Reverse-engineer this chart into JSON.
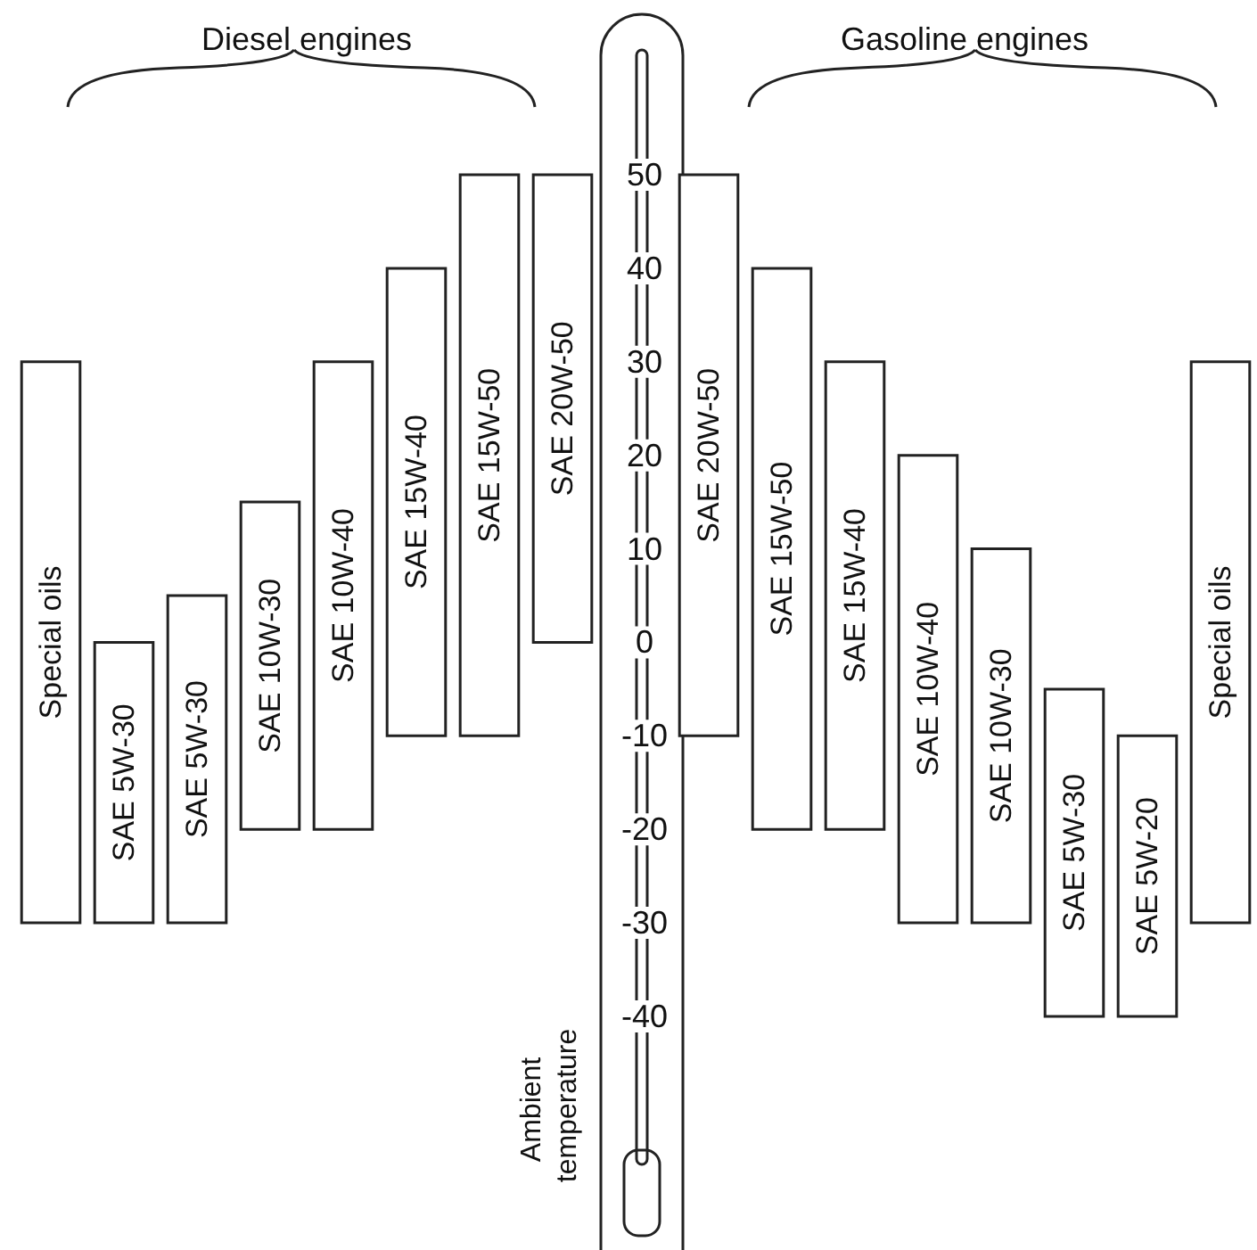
{
  "chart_data": {
    "type": "bar",
    "categories": [
      "Special oils",
      "SAE 5W-30",
      "SAE 5W-30",
      "SAE 10W-30",
      "SAE 10W-40",
      "SAE 15W-40",
      "SAE 15W-50",
      "SAE 20W-50",
      null,
      "SAE 20W-50",
      "SAE 15W-50",
      "SAE 15W-40",
      "SAE 10W-40",
      "SAE 10W-30",
      "SAE 5W-30",
      "SAE 5W-20",
      "Special oils"
    ],
    "base": [
      -30,
      -30,
      -30,
      -20,
      -20,
      -10,
      -10,
      0,
      null,
      -10,
      -20,
      -20,
      -30,
      -30,
      -40,
      -40,
      -30
    ],
    "values": [
      60,
      30,
      35,
      35,
      50,
      50,
      60,
      50,
      null,
      60,
      60,
      50,
      50,
      40,
      35,
      30,
      60
    ],
    "color": "#ffffff",
    "ylabel": "Ambient temperature",
    "ylim": [
      -40,
      50
    ],
    "yticks": [
      -40,
      -30,
      -20,
      -10,
      0,
      10,
      20,
      30,
      40,
      50
    ],
    "annotations": [
      "Diesel engines",
      "Gasoline engines"
    ],
    "grid": false
  }
}
